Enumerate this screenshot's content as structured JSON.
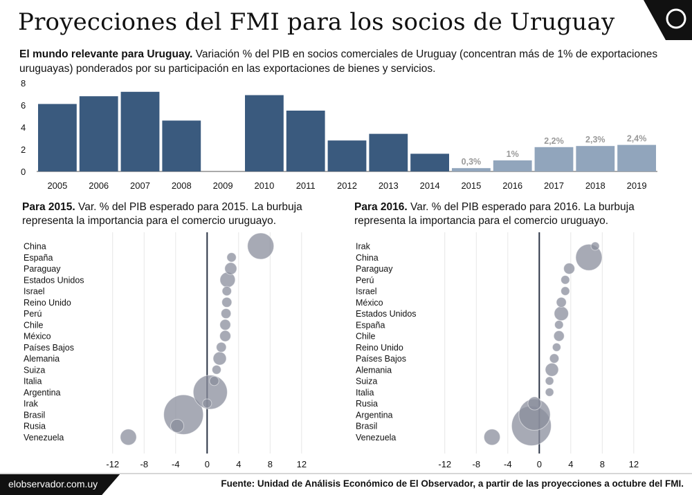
{
  "header": {
    "title": "Proyecciones del FMI para los socios de Uruguay",
    "subtitle_bold": "El mundo relevante para Uruguay.",
    "subtitle_rest": " Variación % del PIB en socios comerciales de Uruguay (concentran más de 1% de exportaciones uruguayas) ponderados por su participación en las exportaciones de bienes y servicios."
  },
  "panel_2015": {
    "bold": "Para 2015.",
    "rest": " Var. % del PIB esperado para 2015. La burbuja representa la importancia para el comercio uruguayo."
  },
  "panel_2016": {
    "bold": "Para 2016.",
    "rest": " Var. % del PIB esperado para 2016. La burbuja representa la importancia para el comercio uruguayo."
  },
  "footer": {
    "site": "elobservador.com.uy",
    "source": "Fuente: Unidad de Análisis Económico de El Observador, a partir de las proyecciones a octubre del FMI."
  },
  "colors": {
    "dark_bar": "#3a5a7e",
    "light_bar": "#91a5bc",
    "projection_label": "#999999",
    "bubble": "#8a8e9c",
    "zero_line": "#2a3344",
    "grid": "#e6e6e6"
  },
  "chart_data": [
    {
      "type": "bar",
      "categories": [
        "2005",
        "2006",
        "2007",
        "2008",
        "2009",
        "2010",
        "2011",
        "2012",
        "2013",
        "2014",
        "2015",
        "2016",
        "2017",
        "2018",
        "2019"
      ],
      "values": [
        6.1,
        6.8,
        7.2,
        4.6,
        0,
        6.9,
        5.5,
        2.8,
        3.4,
        1.6,
        0.3,
        1.0,
        2.2,
        2.3,
        2.4
      ],
      "projected": [
        false,
        false,
        false,
        false,
        false,
        false,
        false,
        false,
        false,
        false,
        true,
        true,
        true,
        true,
        true
      ],
      "data_labels": [
        "",
        "",
        "",
        "",
        "",
        "",
        "",
        "",
        "",
        "",
        "0,3%",
        "1%",
        "2,2%",
        "2,3%",
        "2,4%"
      ],
      "yticks": [
        "0",
        "2",
        "4",
        "6",
        "8"
      ],
      "ylim": [
        0,
        8
      ],
      "grid": false
    },
    {
      "type": "scatter",
      "name": "2015",
      "xlim": [
        -14,
        15
      ],
      "xticks": [
        "-12",
        "-8",
        "-4",
        "0",
        "4",
        "8",
        "12"
      ],
      "points": [
        {
          "label": "China",
          "x": 6.8,
          "size": 12
        },
        {
          "label": "España",
          "x": 3.1,
          "size": 1.5
        },
        {
          "label": "Paraguay",
          "x": 3.0,
          "size": 2.5
        },
        {
          "label": "Estados Unidos",
          "x": 2.6,
          "size": 4
        },
        {
          "label": "Israel",
          "x": 2.5,
          "size": 1.5
        },
        {
          "label": "Reino Unido",
          "x": 2.5,
          "size": 1.7
        },
        {
          "label": "Perú",
          "x": 2.4,
          "size": 1.7
        },
        {
          "label": "Chile",
          "x": 2.3,
          "size": 2
        },
        {
          "label": "México",
          "x": 2.3,
          "size": 2.1
        },
        {
          "label": "Países Bajos",
          "x": 1.8,
          "size": 1.7
        },
        {
          "label": "Alemania",
          "x": 1.6,
          "size": 3
        },
        {
          "label": "Suiza",
          "x": 1.2,
          "size": 1.4
        },
        {
          "label": "Italia",
          "x": 0.9,
          "size": 1.5
        },
        {
          "label": "Argentina",
          "x": 0.4,
          "size": 20
        },
        {
          "label": "Irak",
          "x": 0.0,
          "size": 1.4
        },
        {
          "label": "Brasil",
          "x": -3.0,
          "size": 27
        },
        {
          "label": "Rusia",
          "x": -3.8,
          "size": 3
        },
        {
          "label": "Venezuela",
          "x": -10.0,
          "size": 4.5
        }
      ]
    },
    {
      "type": "scatter",
      "name": "2016",
      "xlim": [
        -14,
        15
      ],
      "xticks": [
        "-12",
        "-8",
        "-4",
        "0",
        "4",
        "8",
        "12"
      ],
      "points": [
        {
          "label": "Irak",
          "x": 7.1,
          "size": 1.2
        },
        {
          "label": "China",
          "x": 6.3,
          "size": 12
        },
        {
          "label": "Paraguay",
          "x": 3.8,
          "size": 2.1
        },
        {
          "label": "Perú",
          "x": 3.3,
          "size": 1.3
        },
        {
          "label": "Israel",
          "x": 3.3,
          "size": 1.3
        },
        {
          "label": "México",
          "x": 2.8,
          "size": 1.7
        },
        {
          "label": "Estados Unidos",
          "x": 2.8,
          "size": 3.5
        },
        {
          "label": "España",
          "x": 2.5,
          "size": 1.3
        },
        {
          "label": "Chile",
          "x": 2.5,
          "size": 1.9
        },
        {
          "label": "Reino Unido",
          "x": 2.2,
          "size": 1.2
        },
        {
          "label": "Países Bajos",
          "x": 1.9,
          "size": 1.5
        },
        {
          "label": "Alemania",
          "x": 1.6,
          "size": 3
        },
        {
          "label": "Suiza",
          "x": 1.3,
          "size": 1.2
        },
        {
          "label": "Italia",
          "x": 1.3,
          "size": 1.2
        },
        {
          "label": "Rusia",
          "x": -0.6,
          "size": 3
        },
        {
          "label": "Argentina",
          "x": -0.6,
          "size": 17
        },
        {
          "label": "Brasil",
          "x": -1.0,
          "size": 27
        },
        {
          "label": "Venezuela",
          "x": -6.0,
          "size": 4.5
        }
      ]
    }
  ]
}
